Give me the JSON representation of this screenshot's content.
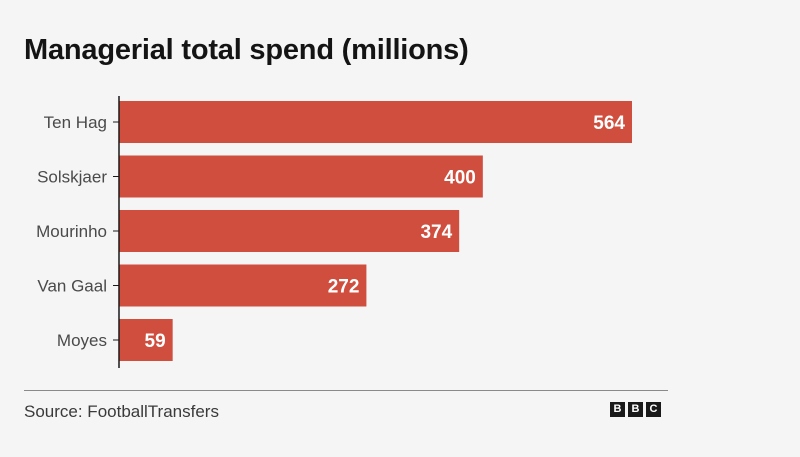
{
  "title": "Managerial total spend (millions)",
  "source": "Source: FootballTransfers",
  "logo": {
    "letters": [
      "B",
      "B",
      "C"
    ]
  },
  "colors": {
    "bar": "#d04e3e",
    "axis": "#1a1a1a",
    "label": "#4a4a4a",
    "value_label": "#ffffff"
  },
  "chart_data": {
    "type": "bar",
    "orientation": "horizontal",
    "title": "Managerial total spend (millions)",
    "xlabel": "",
    "ylabel": "",
    "categories": [
      "Ten Hag",
      "Solskjaer",
      "Mourinho",
      "Van Gaal",
      "Moyes"
    ],
    "values": [
      564,
      400,
      374,
      272,
      59
    ],
    "xlim": [
      0,
      564
    ],
    "grid": false,
    "data_labels": true
  }
}
